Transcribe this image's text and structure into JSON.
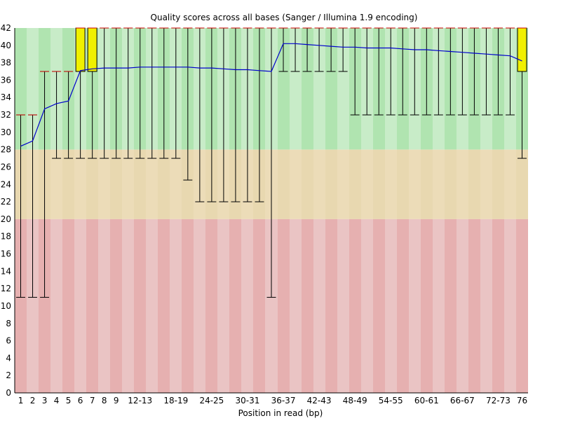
{
  "chart_data": {
    "type": "box",
    "title": "Quality scores across all bases (Sanger / Illumina 1.9 encoding)",
    "xlabel": "Position in read (bp)",
    "ylabel": "",
    "ylim": [
      0,
      42
    ],
    "yticks": [
      0,
      2,
      4,
      6,
      8,
      10,
      12,
      14,
      16,
      18,
      20,
      22,
      24,
      26,
      28,
      30,
      32,
      34,
      36,
      38,
      40,
      42
    ],
    "grid": false,
    "quality_bands": [
      {
        "name": "good",
        "from": 28,
        "to": 42,
        "colors": [
          "#b0e4b0",
          "#c8ecc8"
        ]
      },
      {
        "name": "reasonable",
        "from": 20,
        "to": 28,
        "colors": [
          "#e8d8b0",
          "#ecdcb8"
        ]
      },
      {
        "name": "poor",
        "from": 0,
        "to": 20,
        "colors": [
          "#e6b0b0",
          "#eac4c4"
        ]
      }
    ],
    "colors": {
      "box": "#f0f000",
      "mean_line": "#0000cc",
      "median": "#cc0000",
      "whisker": "#000000"
    },
    "categories": [
      "1",
      "2",
      "3",
      "4",
      "5",
      "6",
      "7",
      "8",
      "9",
      "10-11",
      "12-13",
      "14-15",
      "16-17",
      "18-19",
      "20-21",
      "22-23",
      "24-25",
      "26-27",
      "28-29",
      "30-31",
      "32-33",
      "34-35",
      "36-37",
      "38-39",
      "40-41",
      "42-43",
      "44-45",
      "46-47",
      "48-49",
      "50-51",
      "52-53",
      "54-55",
      "56-57",
      "58-59",
      "60-61",
      "62-63",
      "64-65",
      "66-67",
      "68-69",
      "70-71",
      "72-73",
      "74-75",
      "76"
    ],
    "tick_labels": [
      "1",
      "2",
      "3",
      "4",
      "5",
      "6",
      "7",
      "8",
      "9",
      "",
      "12-13",
      "",
      "18-19",
      "",
      "24-25",
      "",
      "30-31",
      "",
      "36-37",
      "",
      "42-43",
      "",
      "48-49",
      "",
      "54-55",
      "",
      "60-61",
      "",
      "66-67",
      "",
      "72-73",
      "",
      "76"
    ],
    "series": [
      {
        "whisker_low": [
          11,
          11,
          11,
          27,
          27,
          27,
          27,
          27,
          27,
          27,
          27,
          27,
          27,
          27,
          24.5,
          22,
          22,
          22,
          22,
          22,
          22,
          11,
          37,
          37,
          37,
          37,
          37,
          37,
          32,
          32,
          32,
          32,
          32,
          32,
          32,
          32,
          32,
          32,
          32,
          32,
          32,
          32,
          27
        ],
        "q1": [
          32,
          32,
          37,
          37,
          37,
          37,
          37,
          42,
          42,
          42,
          42,
          42,
          42,
          42,
          42,
          42,
          42,
          42,
          42,
          42,
          42,
          42,
          42,
          42,
          42,
          42,
          42,
          42,
          42,
          42,
          42,
          42,
          42,
          42,
          42,
          42,
          42,
          42,
          42,
          42,
          42,
          42,
          37
        ],
        "median": [
          32,
          32,
          37,
          37,
          37,
          42,
          42,
          42,
          42,
          42,
          42,
          42,
          42,
          42,
          42,
          42,
          42,
          42,
          42,
          42,
          42,
          42,
          42,
          42,
          42,
          42,
          42,
          42,
          42,
          42,
          42,
          42,
          42,
          42,
          42,
          42,
          42,
          42,
          42,
          42,
          42,
          42,
          42
        ],
        "q3": [
          32,
          32,
          37,
          37,
          37,
          42,
          42,
          42,
          42,
          42,
          42,
          42,
          42,
          42,
          42,
          42,
          42,
          42,
          42,
          42,
          42,
          42,
          42,
          42,
          42,
          42,
          42,
          42,
          42,
          42,
          42,
          42,
          42,
          42,
          42,
          42,
          42,
          42,
          42,
          42,
          42,
          42,
          42
        ],
        "whisker_high": [
          32,
          32,
          37,
          37,
          37,
          42,
          42,
          42,
          42,
          42,
          42,
          42,
          42,
          42,
          42,
          42,
          42,
          42,
          42,
          42,
          42,
          42,
          42,
          42,
          42,
          42,
          42,
          42,
          42,
          42,
          42,
          42,
          42,
          42,
          42,
          42,
          42,
          42,
          42,
          42,
          42,
          42,
          42
        ],
        "mean": [
          28.4,
          29.0,
          32.7,
          33.3,
          33.6,
          37.1,
          37.3,
          37.4,
          37.4,
          37.4,
          37.5,
          37.5,
          37.5,
          37.5,
          37.5,
          37.4,
          37.4,
          37.3,
          37.2,
          37.2,
          37.1,
          37.0,
          40.2,
          40.2,
          40.1,
          40.0,
          39.9,
          39.8,
          39.8,
          39.7,
          39.7,
          39.7,
          39.6,
          39.5,
          39.5,
          39.4,
          39.3,
          39.2,
          39.1,
          39.0,
          38.9,
          38.8,
          38.2
        ]
      }
    ]
  }
}
